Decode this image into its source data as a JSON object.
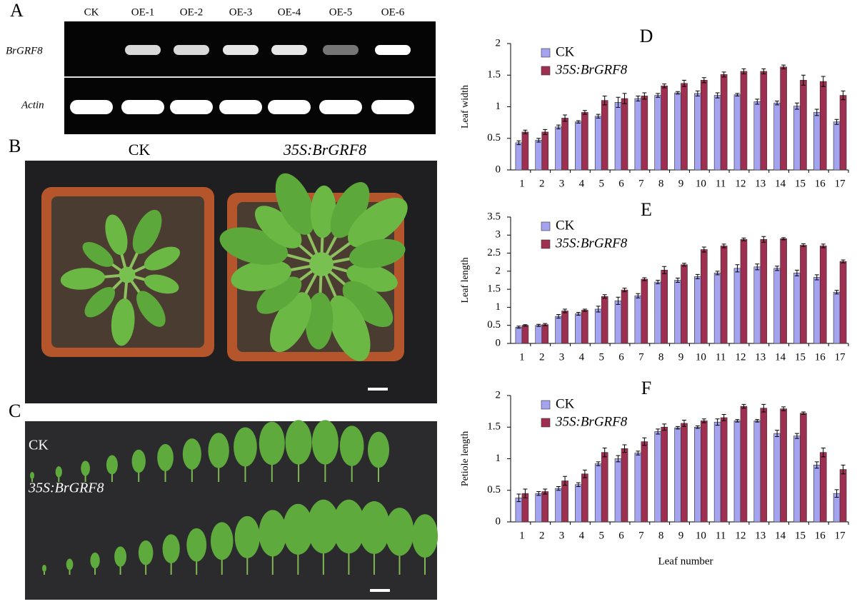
{
  "panels": {
    "a": {
      "label": "A",
      "lanes": [
        "CK",
        "OE-1",
        "OE-2",
        "OE-3",
        "OE-4",
        "OE-5",
        "OE-6"
      ],
      "gene": "BrGRF8",
      "control": "Actin"
    },
    "b": {
      "label": "B",
      "left": "CK",
      "right": "35S:BrGRF8"
    },
    "c": {
      "label": "C",
      "top": "CK",
      "bottom": "35S:BrGRF8"
    }
  },
  "chart_data": [
    {
      "type": "bar",
      "title": "D",
      "ylabel": "Leaf width",
      "categories": [
        "1",
        "2",
        "3",
        "4",
        "5",
        "6",
        "7",
        "8",
        "9",
        "10",
        "11",
        "12",
        "13",
        "14",
        "15",
        "16",
        "17"
      ],
      "ylim": [
        0,
        2
      ],
      "yticks": [
        0,
        0.5,
        1,
        1.5,
        2
      ],
      "series": [
        {
          "name": "CK",
          "color": "#a3a3f0",
          "values": [
            0.43,
            0.47,
            0.68,
            0.76,
            0.85,
            1.07,
            1.13,
            1.18,
            1.22,
            1.21,
            1.18,
            1.19,
            1.08,
            1.06,
            1.01,
            0.91,
            0.76
          ],
          "errors": [
            0.03,
            0.03,
            0.03,
            0.02,
            0.03,
            0.08,
            0.04,
            0.03,
            0.02,
            0.04,
            0.04,
            0.02,
            0.04,
            0.03,
            0.05,
            0.05,
            0.04
          ]
        },
        {
          "name": "35S:BrGRF8",
          "color": "#9e2f50",
          "values": [
            0.6,
            0.6,
            0.82,
            0.91,
            1.1,
            1.13,
            1.17,
            1.33,
            1.37,
            1.42,
            1.51,
            1.56,
            1.56,
            1.63,
            1.42,
            1.4,
            1.18
          ],
          "errors": [
            0.03,
            0.04,
            0.05,
            0.03,
            0.07,
            0.08,
            0.05,
            0.03,
            0.05,
            0.04,
            0.04,
            0.04,
            0.04,
            0.03,
            0.08,
            0.08,
            0.07
          ]
        }
      ]
    },
    {
      "type": "bar",
      "title": "E",
      "ylabel": "Leaf length",
      "categories": [
        "1",
        "2",
        "3",
        "4",
        "5",
        "6",
        "7",
        "8",
        "9",
        "10",
        "11",
        "12",
        "13",
        "14",
        "15",
        "16",
        "17"
      ],
      "ylim": [
        0,
        3.5
      ],
      "yticks": [
        0,
        0.5,
        1,
        1.5,
        2,
        2.5,
        3,
        3.5
      ],
      "series": [
        {
          "name": "CK",
          "color": "#a3a3f0",
          "values": [
            0.45,
            0.5,
            0.75,
            0.82,
            0.95,
            1.18,
            1.32,
            1.7,
            1.75,
            1.85,
            1.95,
            2.08,
            2.12,
            2.08,
            1.95,
            1.83,
            1.42
          ],
          "errors": [
            0.03,
            0.03,
            0.05,
            0.04,
            0.08,
            0.1,
            0.06,
            0.05,
            0.06,
            0.06,
            0.05,
            0.1,
            0.08,
            0.06,
            0.08,
            0.07,
            0.05
          ]
        },
        {
          "name": "35S:BrGRF8",
          "color": "#9e2f50",
          "values": [
            0.5,
            0.52,
            0.9,
            0.92,
            1.3,
            1.48,
            1.78,
            2.03,
            2.18,
            2.6,
            2.7,
            2.88,
            2.88,
            2.9,
            2.72,
            2.7,
            2.27
          ],
          "errors": [
            0.02,
            0.03,
            0.05,
            0.03,
            0.05,
            0.05,
            0.04,
            0.1,
            0.04,
            0.07,
            0.05,
            0.04,
            0.08,
            0.03,
            0.04,
            0.05,
            0.04
          ]
        }
      ]
    },
    {
      "type": "bar",
      "title": "F",
      "ylabel": "Petiole length",
      "xlabel": "Leaf number",
      "categories": [
        "1",
        "2",
        "3",
        "4",
        "5",
        "6",
        "7",
        "8",
        "9",
        "10",
        "11",
        "12",
        "13",
        "14",
        "15",
        "16",
        "17"
      ],
      "ylim": [
        0,
        2
      ],
      "yticks": [
        0,
        0.5,
        1,
        1.5,
        2
      ],
      "series": [
        {
          "name": "CK",
          "color": "#a3a3f0",
          "values": [
            0.38,
            0.45,
            0.53,
            0.59,
            0.92,
            1.0,
            1.09,
            1.43,
            1.49,
            1.5,
            1.58,
            1.6,
            1.6,
            1.4,
            1.36,
            0.9,
            0.45
          ],
          "errors": [
            0.06,
            0.03,
            0.03,
            0.03,
            0.03,
            0.05,
            0.03,
            0.04,
            0.02,
            0.02,
            0.05,
            0.02,
            0.02,
            0.05,
            0.04,
            0.05,
            0.06
          ]
        },
        {
          "name": "35S:BrGRF8",
          "color": "#9e2f50",
          "values": [
            0.45,
            0.48,
            0.65,
            0.76,
            1.1,
            1.16,
            1.27,
            1.5,
            1.56,
            1.6,
            1.65,
            1.83,
            1.8,
            1.79,
            1.72,
            1.1,
            0.83
          ],
          "errors": [
            0.07,
            0.04,
            0.07,
            0.06,
            0.07,
            0.06,
            0.06,
            0.05,
            0.05,
            0.03,
            0.05,
            0.03,
            0.06,
            0.03,
            0.02,
            0.07,
            0.07
          ]
        }
      ]
    }
  ]
}
